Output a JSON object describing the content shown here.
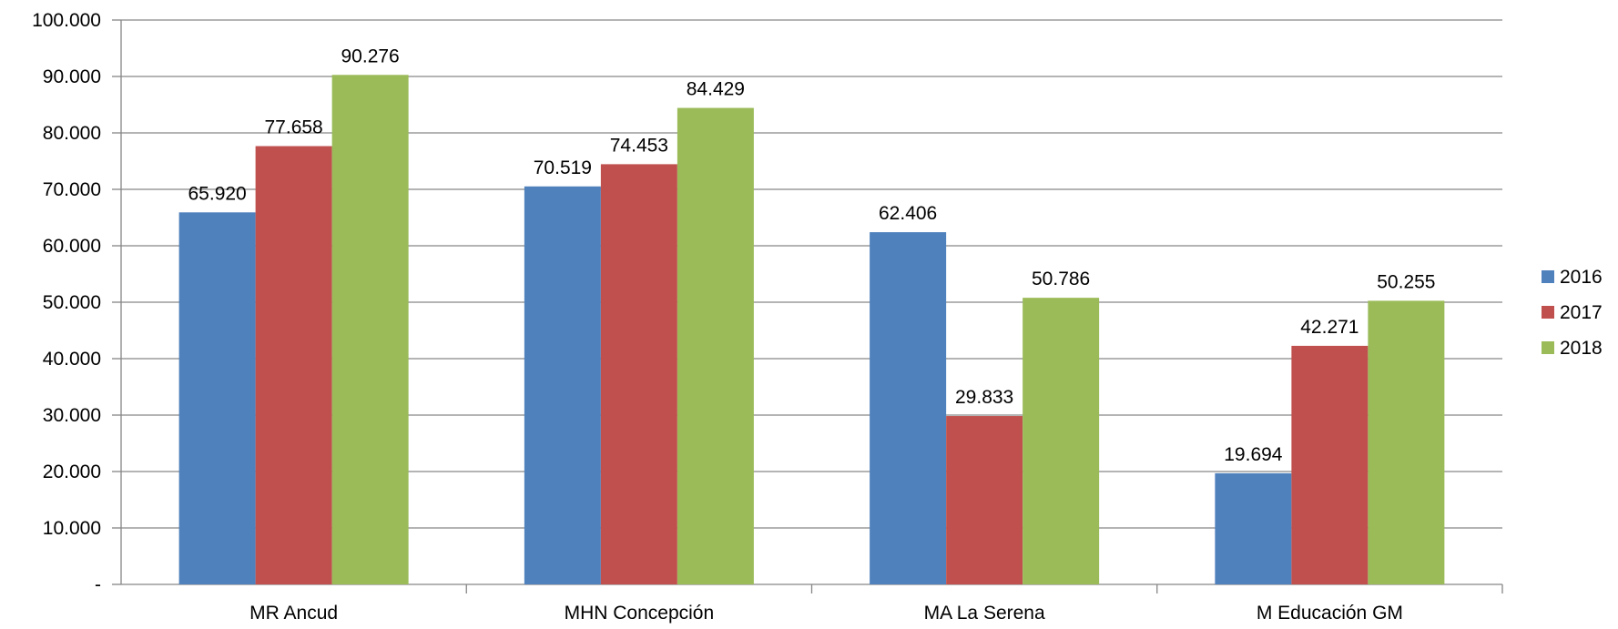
{
  "chart_data": {
    "type": "bar",
    "categories": [
      "MR Ancud",
      "MHN Concepción",
      "MA La Serena",
      "M Educación GM"
    ],
    "series": [
      {
        "name": "2016",
        "color": "#4F81BD",
        "values": [
          65920,
          70519,
          62406,
          19694
        ],
        "labels": [
          "65.920",
          "70.519",
          "62.406",
          "19.694"
        ]
      },
      {
        "name": "2017",
        "color": "#C0504D",
        "values": [
          77658,
          74453,
          29833,
          42271
        ],
        "labels": [
          "77.658",
          "74.453",
          "29.833",
          "42.271"
        ]
      },
      {
        "name": "2018",
        "color": "#9BBB59",
        "values": [
          90276,
          84429,
          50786,
          50255
        ],
        "labels": [
          "90.276",
          "84.429",
          "50.786",
          "50.255"
        ]
      }
    ],
    "ylim": [
      0,
      100000
    ],
    "yticks": [
      0,
      10000,
      20000,
      30000,
      40000,
      50000,
      60000,
      70000,
      80000,
      90000,
      100000
    ],
    "ytick_labels": [
      "-",
      "10.000",
      "20.000",
      "30.000",
      "40.000",
      "50.000",
      "60.000",
      "70.000",
      "80.000",
      "90.000",
      "100.000"
    ],
    "grid": true,
    "legend_position": "right"
  }
}
